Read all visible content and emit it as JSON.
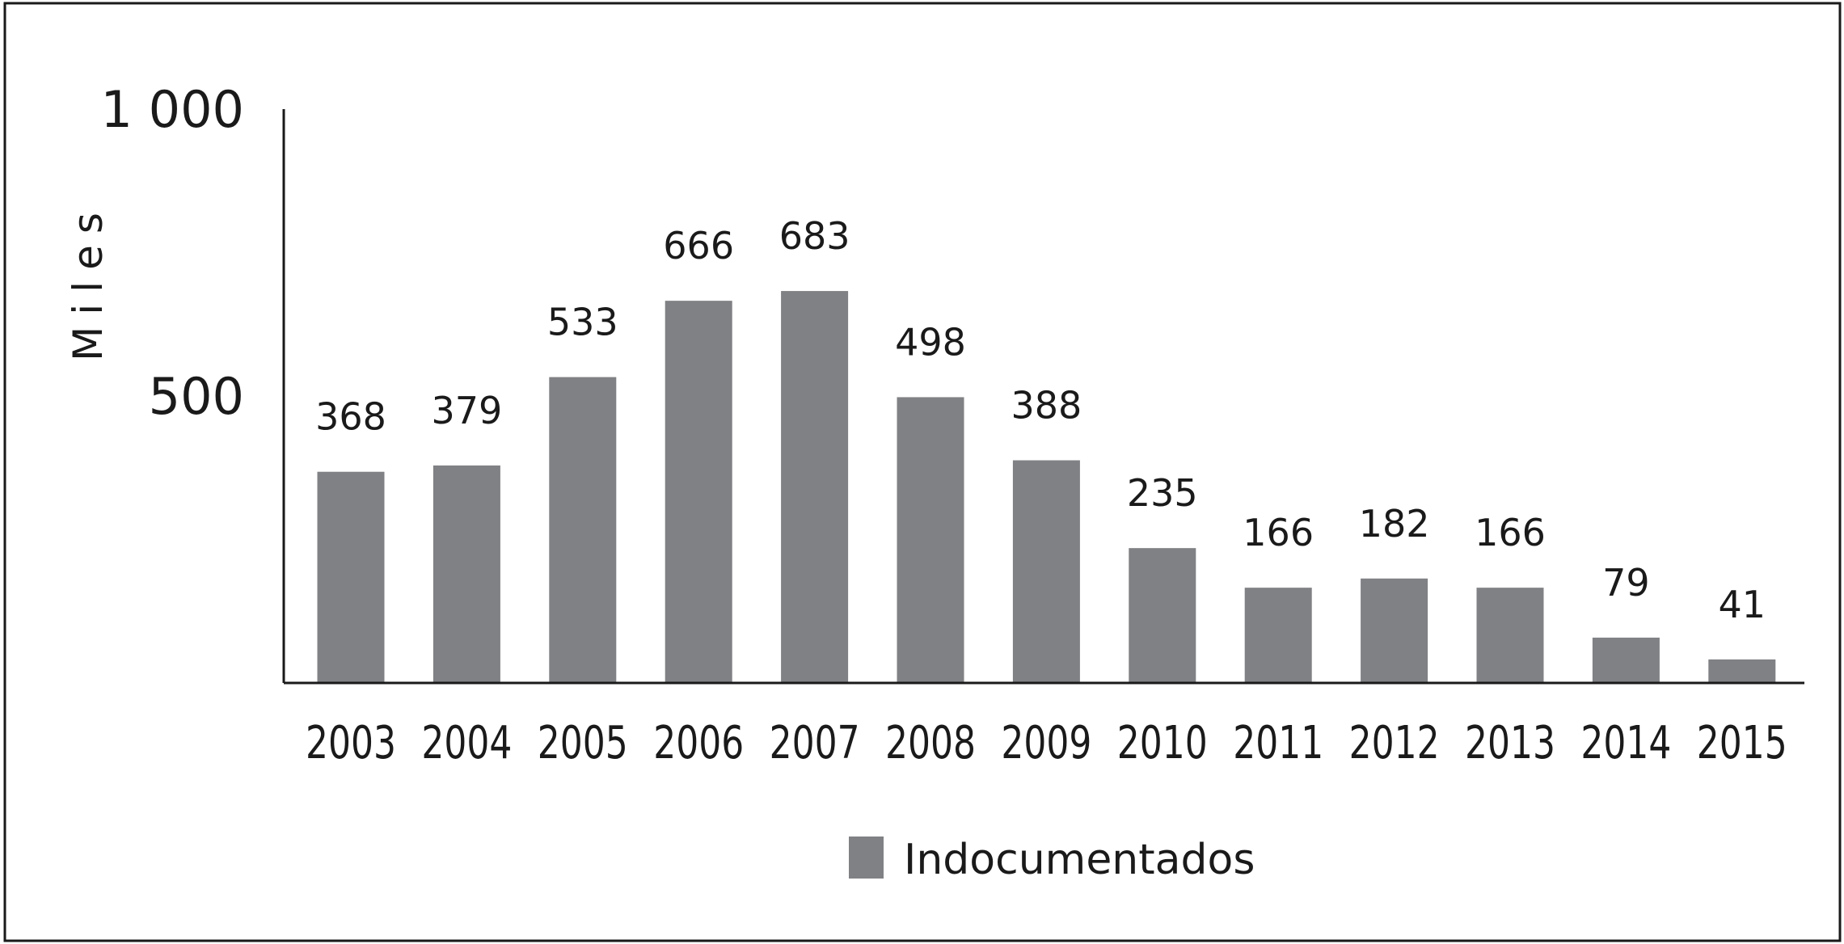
{
  "chart_data": {
    "type": "bar",
    "categories": [
      "2003",
      "2004",
      "2005",
      "2006",
      "2007",
      "2008",
      "2009",
      "2010",
      "2011",
      "2012",
      "2013",
      "2014",
      "2015"
    ],
    "series": [
      {
        "name": "Indocumentados",
        "values": [
          368,
          379,
          533,
          666,
          683,
          498,
          388,
          235,
          166,
          182,
          166,
          79,
          41
        ]
      }
    ],
    "data_labels": [
      "368",
      "379",
      "533",
      "666",
      "683",
      "498",
      "388",
      "235",
      "166",
      "182",
      "166",
      "79",
      "41"
    ],
    "ylabel": "Miles",
    "y_tick_labels": [
      "500",
      "1 000"
    ],
    "y_ticks": [
      500,
      1000
    ],
    "ylim": [
      0,
      1000
    ],
    "grid": false,
    "legend_position": "bottom-center",
    "colors": {
      "bar": "#808184",
      "axis": "#1a1a1a",
      "frame": "#1a1a1a"
    }
  }
}
